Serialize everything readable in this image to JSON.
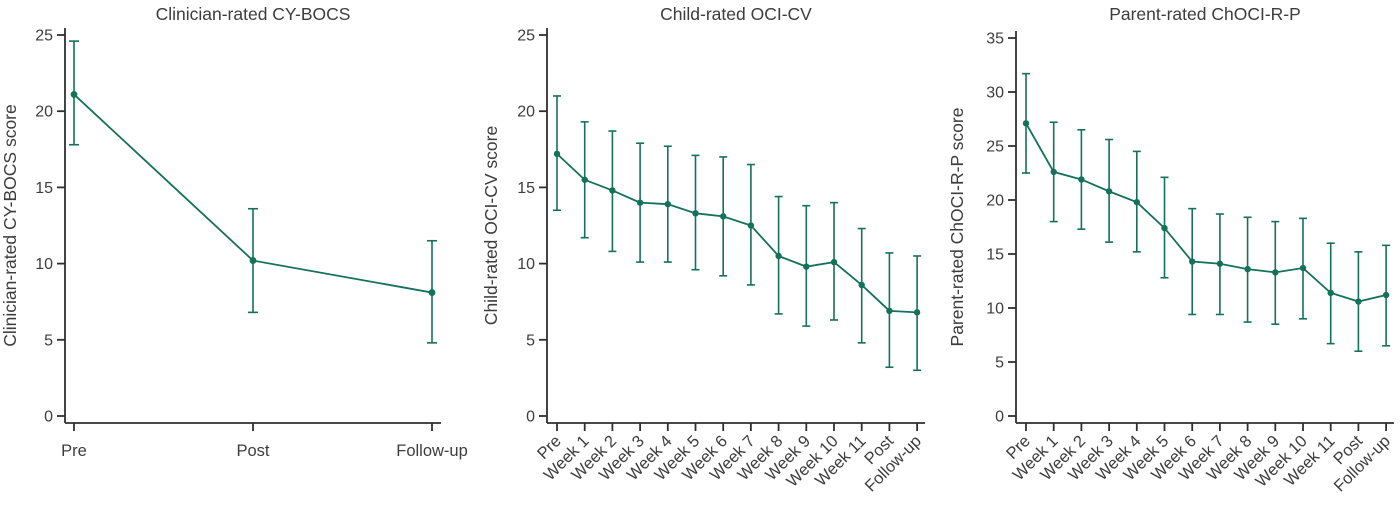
{
  "figure": {
    "background": "#ffffff"
  },
  "colors": {
    "series": "#14715A",
    "axis": "#2f2f2f",
    "text": "#3d3d3d"
  },
  "chart_data": [
    {
      "type": "line",
      "title": "Clinician-rated CY-BOCS",
      "ylabel": "Clinician-rated CY-BOCS score",
      "xlabel": "",
      "categories": [
        "Pre",
        "Post",
        "Follow-up"
      ],
      "values": [
        21.1,
        10.2,
        8.1
      ],
      "error_low": [
        17.8,
        6.8,
        4.8
      ],
      "error_high": [
        24.6,
        13.6,
        11.5
      ],
      "ylim": [
        0,
        25
      ],
      "yticks": [
        0,
        5,
        10,
        15,
        20,
        25
      ],
      "grid": false,
      "legend": "none",
      "error_bars": true,
      "x_label_rotation": 0
    },
    {
      "type": "line",
      "title": "Child-rated OCI-CV",
      "ylabel": "Child-rated OCI-CV score",
      "xlabel": "",
      "categories": [
        "Pre",
        "Week 1",
        "Week 2",
        "Week 3",
        "Week 4",
        "Week 5",
        "Week 6",
        "Week 7",
        "Week 8",
        "Week 9",
        "Week 10",
        "Week 11",
        "Post",
        "Follow-up"
      ],
      "values": [
        17.2,
        15.5,
        14.8,
        14.0,
        13.9,
        13.3,
        13.1,
        12.5,
        10.5,
        9.8,
        10.1,
        8.6,
        6.9,
        6.8
      ],
      "error_low": [
        13.5,
        11.7,
        10.8,
        10.1,
        10.1,
        9.6,
        9.2,
        8.6,
        6.7,
        5.9,
        6.3,
        4.8,
        3.2,
        3.0
      ],
      "error_high": [
        21.0,
        19.3,
        18.7,
        17.9,
        17.7,
        17.1,
        17.0,
        16.5,
        14.4,
        13.8,
        14.0,
        12.3,
        10.7,
        10.5
      ],
      "ylim": [
        0,
        25
      ],
      "yticks": [
        0,
        5,
        10,
        15,
        20,
        25
      ],
      "grid": false,
      "legend": "none",
      "error_bars": true,
      "x_label_rotation": -45
    },
    {
      "type": "line",
      "title": "Parent-rated ChOCI-R-P",
      "ylabel": "Parent-rated ChOCI-R-P score",
      "xlabel": "",
      "categories": [
        "Pre",
        "Week 1",
        "Week 2",
        "Week 3",
        "Week 4",
        "Week 5",
        "Week 6",
        "Week 7",
        "Week 8",
        "Week 9",
        "Week 10",
        "Week 11",
        "Post",
        "Follow-up"
      ],
      "values": [
        27.1,
        22.6,
        21.9,
        20.8,
        19.8,
        17.4,
        14.3,
        14.1,
        13.6,
        13.3,
        13.7,
        11.4,
        10.6,
        11.2
      ],
      "error_low": [
        22.5,
        18.0,
        17.3,
        16.1,
        15.2,
        12.8,
        9.4,
        9.4,
        8.7,
        8.5,
        9.0,
        6.7,
        6.0,
        6.5
      ],
      "error_high": [
        31.7,
        27.2,
        26.5,
        25.6,
        24.5,
        22.1,
        19.2,
        18.7,
        18.4,
        18.0,
        18.3,
        16.0,
        15.2,
        15.8
      ],
      "ylim": [
        0,
        35
      ],
      "yticks": [
        0,
        5,
        10,
        15,
        20,
        25,
        30,
        35
      ],
      "grid": false,
      "legend": "none",
      "error_bars": true,
      "x_label_rotation": -45
    }
  ]
}
